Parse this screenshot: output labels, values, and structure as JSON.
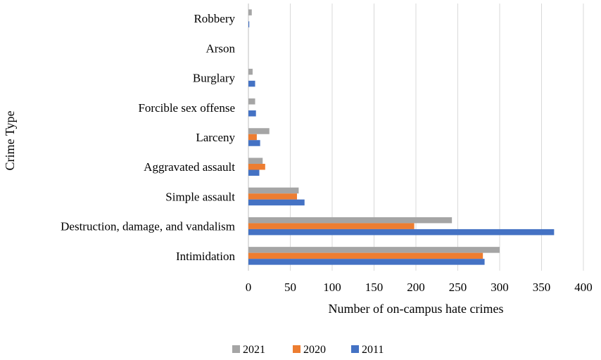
{
  "chart_data": {
    "type": "bar",
    "orientation": "horizontal",
    "categories": [
      "Intimidation",
      "Destruction, damage, and vandalism",
      "Simple assault",
      "Aggravated assault",
      "Larceny",
      "Forcible sex offense",
      "Burglary",
      "Arson",
      "Robbery"
    ],
    "series": [
      {
        "name": "2021",
        "color": "#a5a5a5",
        "values": [
          300,
          243,
          60,
          17,
          25,
          8,
          5,
          0,
          4
        ]
      },
      {
        "name": "2020",
        "color": "#ed7d31",
        "values": [
          280,
          198,
          58,
          20,
          10,
          0,
          0,
          0,
          0
        ]
      },
      {
        "name": "2011",
        "color": "#4472c4",
        "values": [
          282,
          365,
          67,
          13,
          14,
          9,
          8,
          0,
          1
        ]
      }
    ],
    "xlabel": "Number of on-campus hate crimes",
    "ylabel": "Crime Type",
    "xlim": [
      0,
      400
    ],
    "xticks": [
      0,
      50,
      100,
      150,
      200,
      250,
      300,
      350,
      400
    ],
    "grid": "vertical",
    "legend_position": "bottom"
  }
}
